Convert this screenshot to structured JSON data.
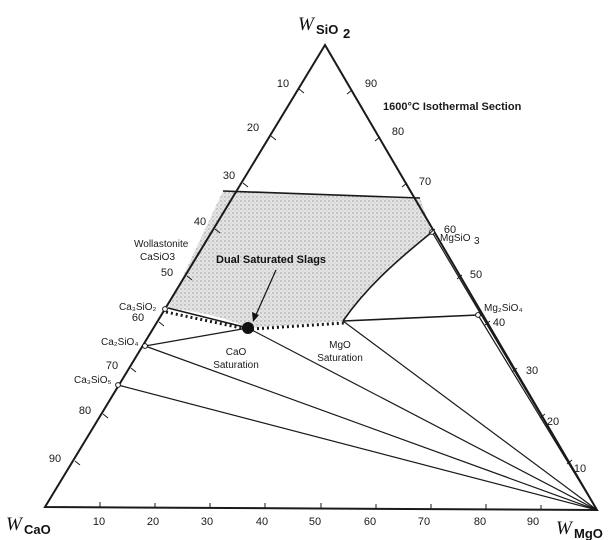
{
  "diagram": {
    "title": "1600°C Isothermal Section",
    "corners": {
      "top": {
        "main": "W",
        "sub": "SiO",
        "sub2": "2"
      },
      "left": {
        "main": "W",
        "sub": "CaO"
      },
      "right": {
        "main": "W",
        "sub": "MgO"
      }
    },
    "left_ticks": [
      "10",
      "20",
      "30",
      "40",
      "50",
      "60",
      "70",
      "80",
      "90"
    ],
    "right_ticks": [
      "90",
      "80",
      "70",
      "60",
      "50",
      "40",
      "30",
      "20",
      "10"
    ],
    "bottom_ticks": [
      "10",
      "20",
      "30",
      "40",
      "50",
      "60",
      "70",
      "80",
      "90"
    ],
    "phases": {
      "wollastonite_name": "Wollastonite",
      "wollastonite_formula": "CaSiO3",
      "mgsio3": "MgSiO",
      "mgsio3_sub": "3",
      "mg2sio4": "Mg₂SiO₄",
      "ca2sio4": "Ca₂SiO₄",
      "ca3sio5": "Ca₃SiO₅",
      "ca3sio2": "Ca₃SiO₂"
    },
    "annotations": {
      "dual_saturated": "Dual Saturated Slags",
      "cao_line1": "CaO",
      "cao_line2": "Saturation",
      "mgo_line1": "MgO",
      "mgo_line2": "Saturation"
    },
    "colors": {
      "ink": "#1a1a1a",
      "region_fill": "#cfcfcf",
      "background": "#ffffff"
    }
  }
}
